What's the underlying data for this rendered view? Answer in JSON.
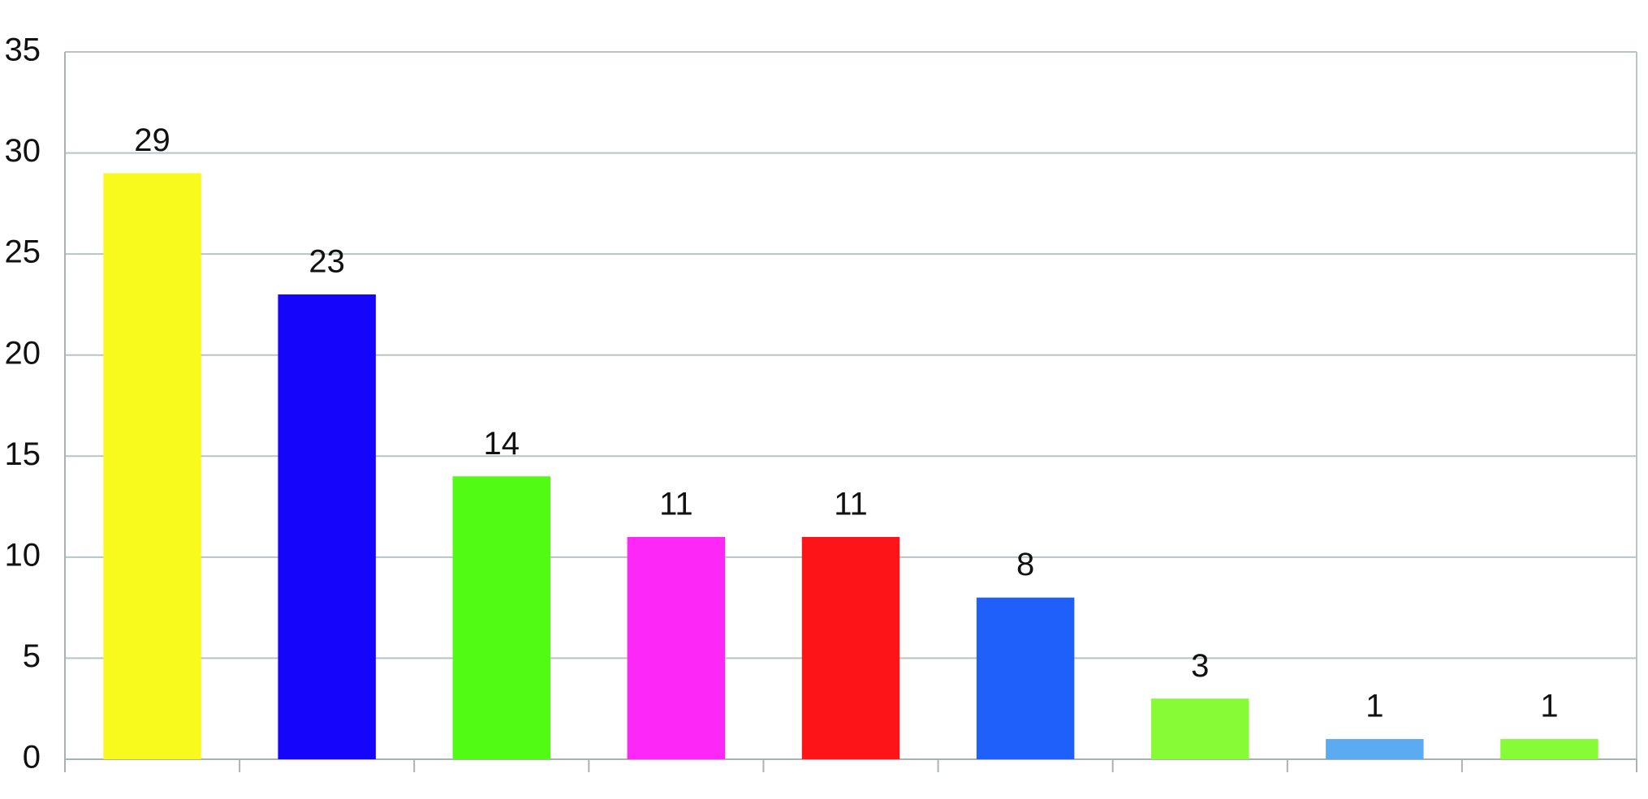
{
  "chart_data": {
    "type": "bar",
    "categories": [
      null,
      null,
      null,
      null,
      null,
      null,
      null,
      null,
      null
    ],
    "values": [
      29,
      23,
      14,
      11,
      11,
      8,
      3,
      1,
      1
    ],
    "colors": [
      "#f8fa1e",
      "#1505fb",
      "#52fb14",
      "#fd28f7",
      "#fd1418",
      "#1f60fb",
      "#87fb35",
      "#5aabf2",
      "#87fb35"
    ],
    "ylim": [
      0,
      35
    ],
    "yticks": [
      0,
      5,
      10,
      15,
      20,
      25,
      30,
      35
    ],
    "grid": true
  }
}
